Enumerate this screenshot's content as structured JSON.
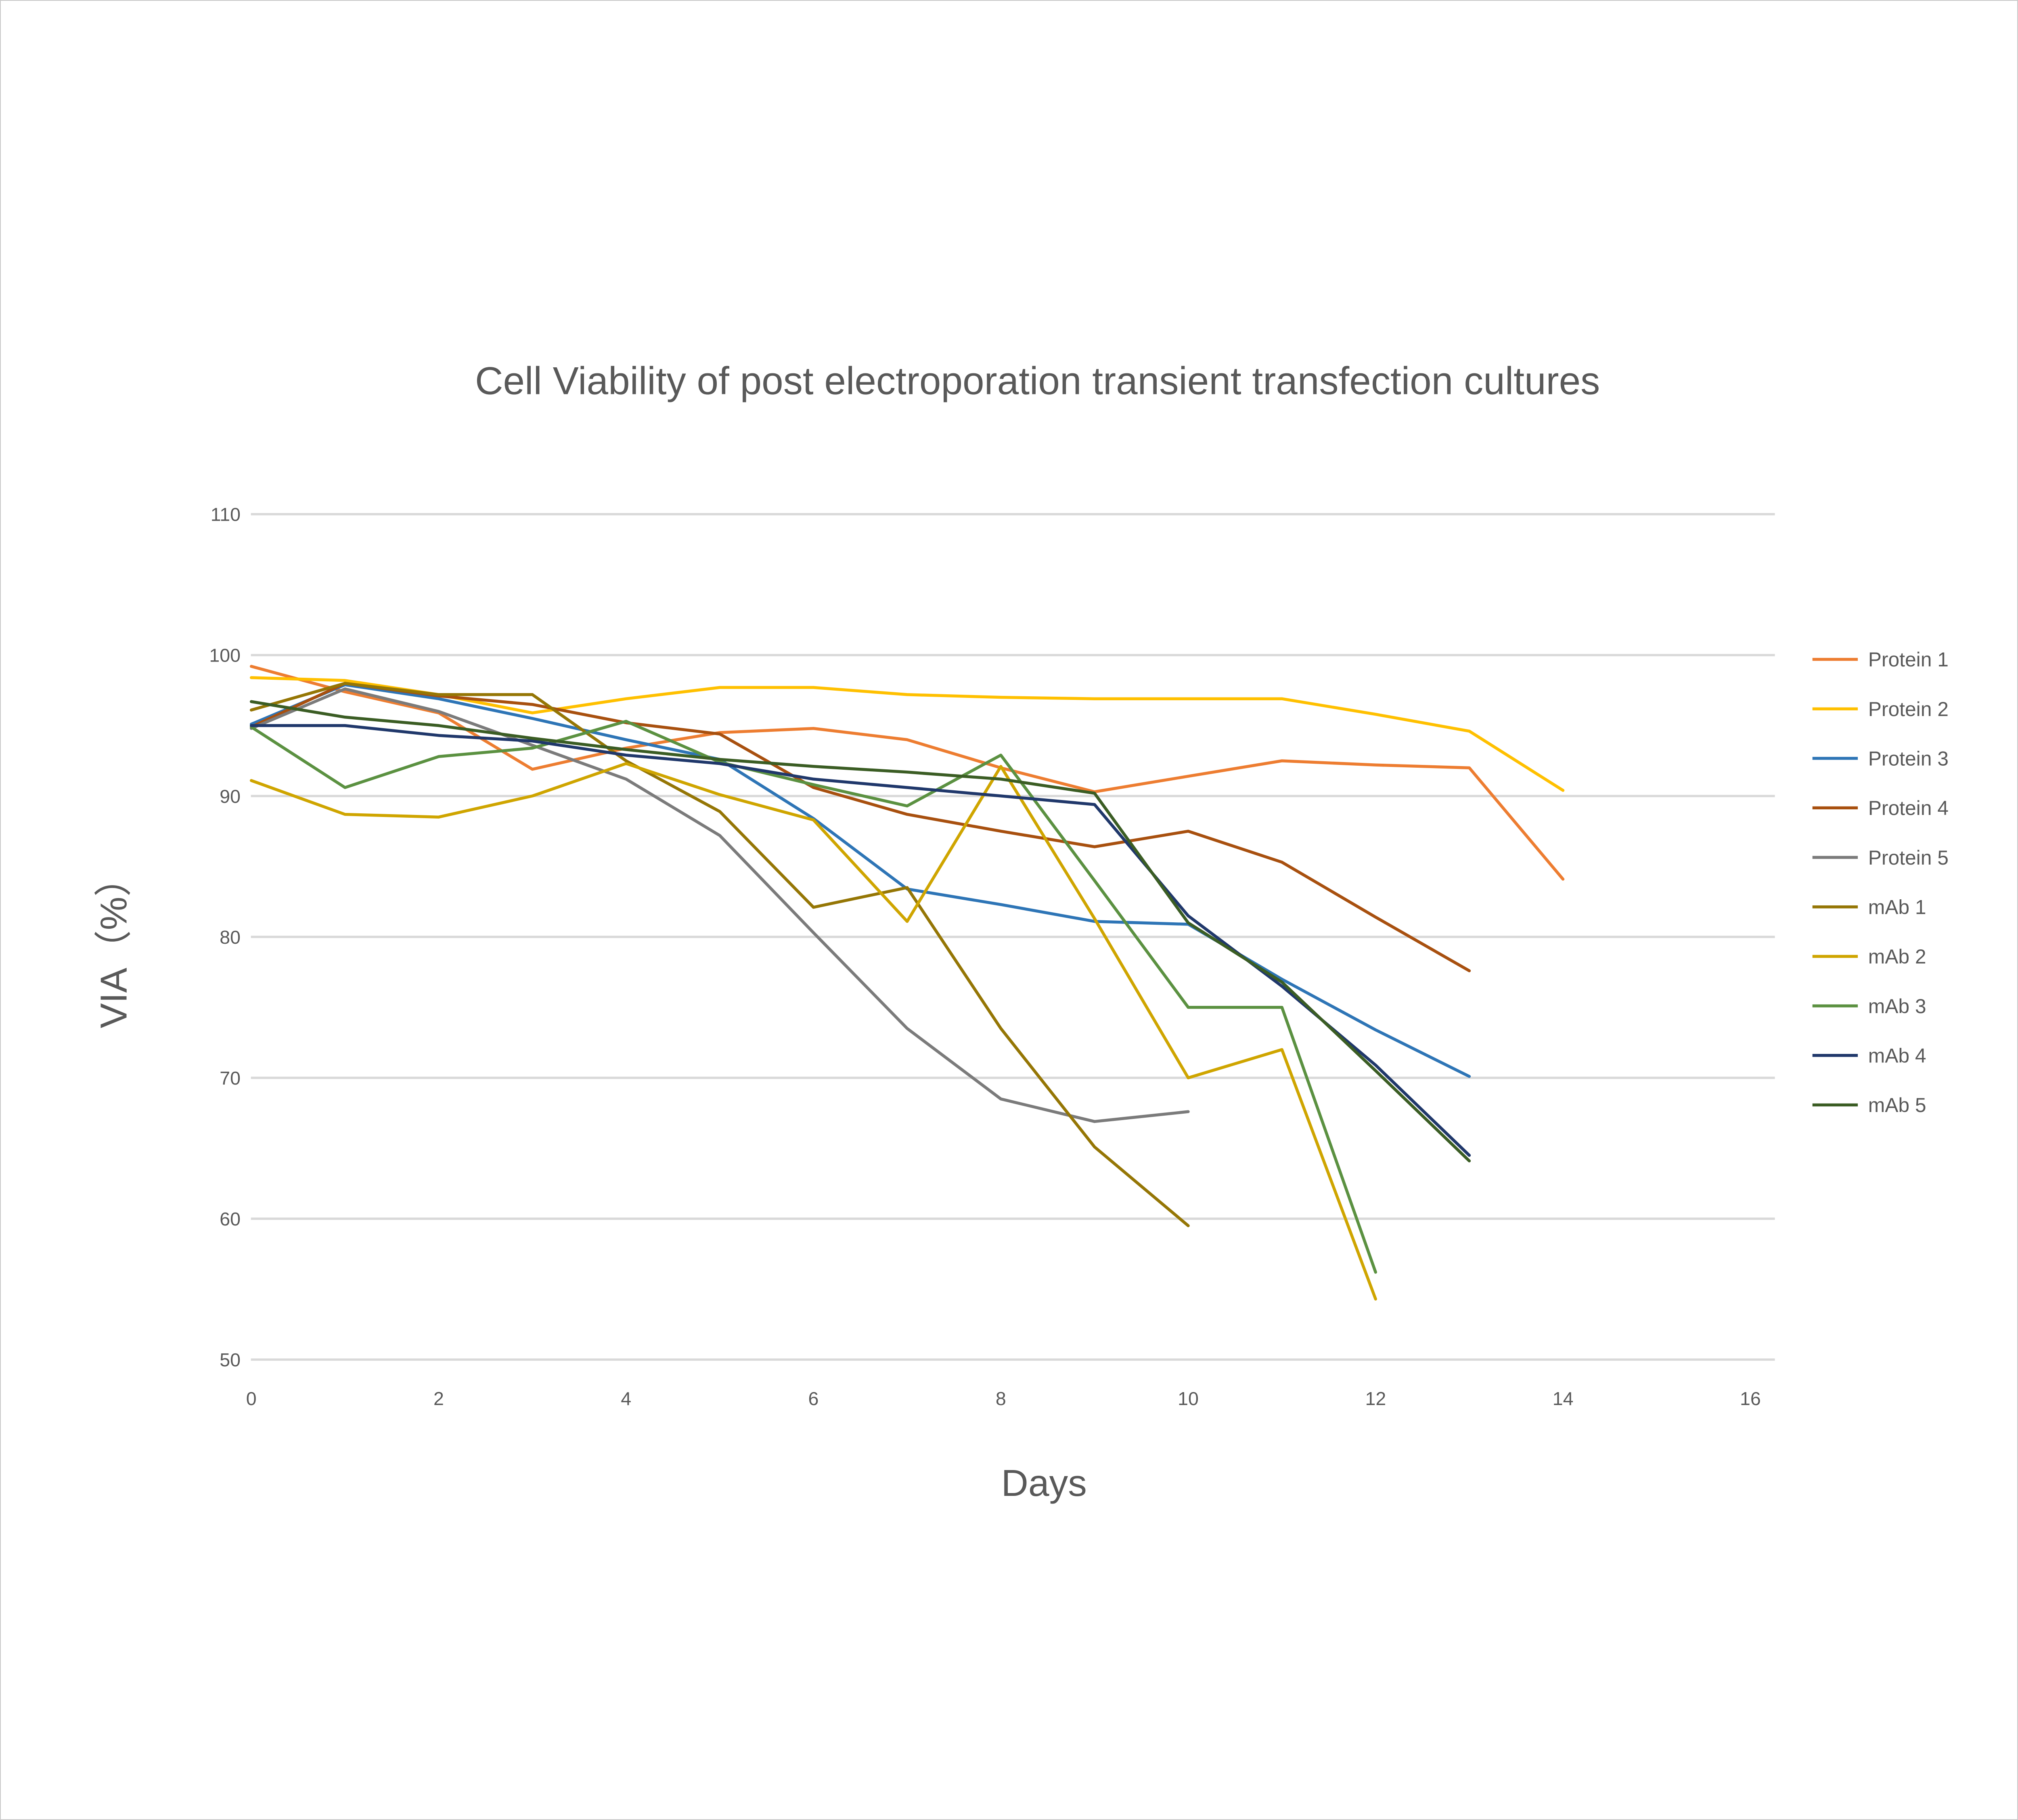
{
  "frame": {
    "background": "#ffffff",
    "border_color": "#c9c9c9"
  },
  "chart_data": {
    "type": "line",
    "title": "Cell Viability of post electroporation transient transfection cultures",
    "xlabel": "Days",
    "ylabel": "VIA（%）",
    "xlim": [
      0,
      16
    ],
    "ylim": [
      50,
      110
    ],
    "xticks": [
      0,
      2,
      4,
      6,
      8,
      10,
      12,
      14,
      16
    ],
    "yticks": [
      110,
      100,
      90,
      80,
      70,
      60,
      50
    ],
    "grid": "horizontal",
    "gridline_color": "#d9d9d9",
    "axis_text_color": "#595959",
    "legend_position": "right",
    "series": [
      {
        "name": "Protein 1",
        "color": "#ED7D31",
        "points": [
          [
            0,
            99.2
          ],
          [
            1,
            97.4
          ],
          [
            2,
            95.9
          ],
          [
            3,
            91.9
          ],
          [
            4,
            93.4
          ],
          [
            5,
            94.5
          ],
          [
            6,
            94.8
          ],
          [
            7,
            94.0
          ],
          [
            8,
            92.0
          ],
          [
            9,
            90.3
          ],
          [
            10,
            91.4
          ],
          [
            11,
            92.5
          ],
          [
            12,
            92.2
          ],
          [
            13,
            92.0
          ],
          [
            14,
            84.1
          ]
        ]
      },
      {
        "name": "Protein 2",
        "color": "#FFC000",
        "points": [
          [
            0,
            98.4
          ],
          [
            1,
            98.2
          ],
          [
            2,
            97.2
          ],
          [
            3,
            95.9
          ],
          [
            4,
            96.9
          ],
          [
            5,
            97.7
          ],
          [
            6,
            97.7
          ],
          [
            7,
            97.2
          ],
          [
            8,
            97.0
          ],
          [
            9,
            96.9
          ],
          [
            10,
            96.9
          ],
          [
            11,
            96.9
          ],
          [
            12,
            95.8
          ],
          [
            13,
            94.6
          ],
          [
            14,
            90.4
          ]
        ]
      },
      {
        "name": "Protein 3",
        "color": "#2E75B6",
        "points": [
          [
            0,
            95.1
          ],
          [
            1,
            97.9
          ],
          [
            2,
            96.9
          ],
          [
            3,
            95.5
          ],
          [
            4,
            94.0
          ],
          [
            5,
            92.6
          ],
          [
            6,
            88.4
          ],
          [
            7,
            83.4
          ],
          [
            8,
            82.3
          ],
          [
            9,
            81.1
          ],
          [
            10,
            80.9
          ],
          [
            11,
            77.0
          ],
          [
            12,
            73.4
          ],
          [
            13,
            70.1
          ]
        ]
      },
      {
        "name": "Protein 4",
        "color": "#A8500F",
        "points": [
          [
            0,
            94.9
          ],
          [
            1,
            98.0
          ],
          [
            2,
            97.1
          ],
          [
            3,
            96.5
          ],
          [
            4,
            95.2
          ],
          [
            5,
            94.4
          ],
          [
            6,
            90.6
          ],
          [
            7,
            88.7
          ],
          [
            8,
            87.5
          ],
          [
            9,
            86.4
          ],
          [
            10,
            87.5
          ],
          [
            11,
            85.3
          ],
          [
            12,
            81.4
          ],
          [
            13,
            77.6
          ]
        ]
      },
      {
        "name": "Protein 5",
        "color": "#7B7B7B",
        "points": [
          [
            0,
            94.8
          ],
          [
            1,
            97.6
          ],
          [
            2,
            96.0
          ],
          [
            3,
            93.6
          ],
          [
            4,
            91.2
          ],
          [
            5,
            87.2
          ],
          [
            6,
            80.3
          ],
          [
            7,
            73.5
          ],
          [
            8,
            68.5
          ],
          [
            9,
            66.9
          ],
          [
            10,
            67.6
          ]
        ]
      },
      {
        "name": "mAb 1",
        "color": "#957605",
        "points": [
          [
            0,
            96.1
          ],
          [
            1,
            98.0
          ],
          [
            2,
            97.2
          ],
          [
            3,
            97.2
          ],
          [
            4,
            92.5
          ],
          [
            5,
            88.9
          ],
          [
            6,
            82.1
          ],
          [
            7,
            83.5
          ],
          [
            8,
            73.5
          ],
          [
            9,
            65.1
          ],
          [
            10,
            59.5
          ]
        ]
      },
      {
        "name": "mAb 2",
        "color": "#CFA500",
        "points": [
          [
            0,
            91.1
          ],
          [
            1,
            88.7
          ],
          [
            2,
            88.5
          ],
          [
            3,
            90.0
          ],
          [
            4,
            92.3
          ],
          [
            5,
            90.1
          ],
          [
            6,
            88.3
          ],
          [
            7,
            81.1
          ],
          [
            8,
            92.1
          ],
          [
            9,
            81.3
          ],
          [
            10,
            70.0
          ],
          [
            11,
            72.0
          ],
          [
            12,
            54.3
          ]
        ]
      },
      {
        "name": "mAb 3",
        "color": "#5B9141",
        "points": [
          [
            0,
            94.9
          ],
          [
            1,
            90.6
          ],
          [
            2,
            92.8
          ],
          [
            3,
            93.4
          ],
          [
            4,
            95.3
          ],
          [
            5,
            92.4
          ],
          [
            6,
            90.8
          ],
          [
            7,
            89.3
          ],
          [
            8,
            92.9
          ],
          [
            9,
            84.0
          ],
          [
            10,
            75.0
          ],
          [
            11,
            75.0
          ],
          [
            12,
            56.2
          ]
        ]
      },
      {
        "name": "mAb 4",
        "color": "#20386B",
        "points": [
          [
            0,
            95.0
          ],
          [
            1,
            95.0
          ],
          [
            2,
            94.3
          ],
          [
            3,
            93.9
          ],
          [
            4,
            92.9
          ],
          [
            5,
            92.3
          ],
          [
            6,
            91.2
          ],
          [
            7,
            90.6
          ],
          [
            8,
            90.0
          ],
          [
            9,
            89.4
          ],
          [
            10,
            81.5
          ],
          [
            11,
            76.5
          ],
          [
            12,
            70.9
          ],
          [
            13,
            64.5
          ]
        ]
      },
      {
        "name": "mAb 5",
        "color": "#3B5D24",
        "points": [
          [
            0,
            96.7
          ],
          [
            1,
            95.6
          ],
          [
            2,
            95.0
          ],
          [
            3,
            94.1
          ],
          [
            4,
            93.3
          ],
          [
            5,
            92.6
          ],
          [
            6,
            92.1
          ],
          [
            7,
            91.7
          ],
          [
            8,
            91.2
          ],
          [
            9,
            90.2
          ],
          [
            10,
            81.0
          ],
          [
            11,
            76.8
          ],
          [
            12,
            70.5
          ],
          [
            13,
            64.1
          ]
        ]
      }
    ]
  }
}
